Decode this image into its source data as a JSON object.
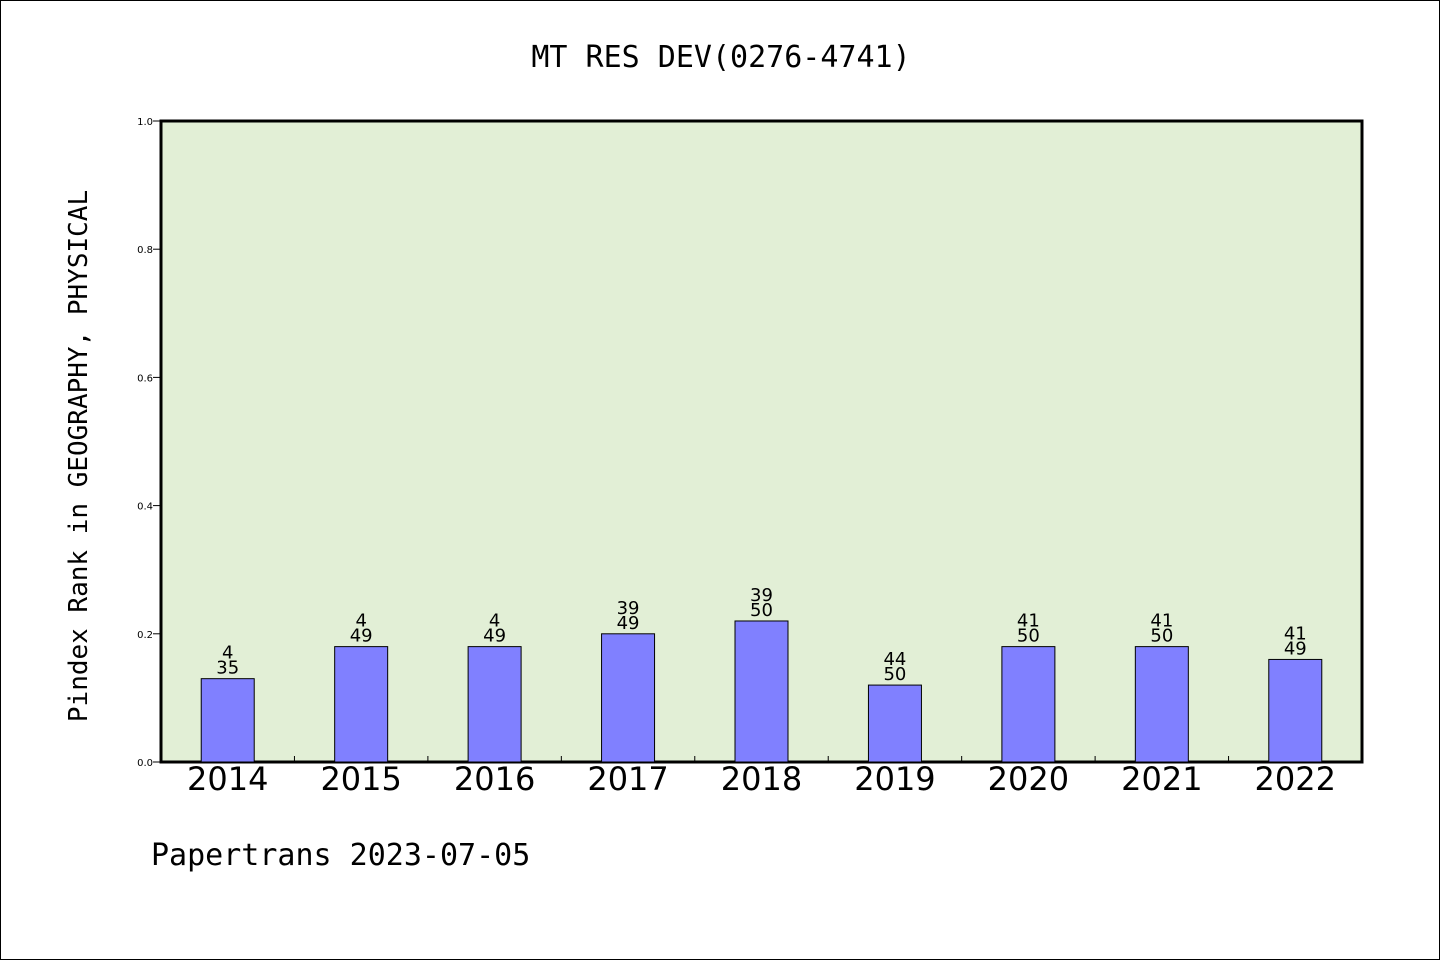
{
  "chart_data": {
    "type": "bar",
    "title": "MT RES DEV(0276-4741)",
    "ylabel": "Pindex Rank in GEOGRAPHY, PHYSICAL",
    "xlabel": "",
    "ylim": [
      0,
      1.0
    ],
    "yticks": [
      "0.0",
      "0.2",
      "0.4",
      "0.6",
      "0.8",
      "1.0"
    ],
    "categories": [
      "2014",
      "2015",
      "2016",
      "2017",
      "2018",
      "2019",
      "2020",
      "2021",
      "2022"
    ],
    "values": [
      0.13,
      0.18,
      0.18,
      0.2,
      0.22,
      0.12,
      0.18,
      0.18,
      0.16
    ],
    "bar_labels": [
      {
        "rank": "4",
        "total": "35"
      },
      {
        "rank": "4",
        "total": "49"
      },
      {
        "rank": "4",
        "total": "49"
      },
      {
        "rank": "39",
        "total": "49"
      },
      {
        "rank": "39",
        "total": "50"
      },
      {
        "rank": "44",
        "total": "50"
      },
      {
        "rank": "41",
        "total": "50"
      },
      {
        "rank": "41",
        "total": "50"
      },
      {
        "rank": "41",
        "total": "49"
      }
    ],
    "footer": "Papertrans 2023-07-05",
    "grid": false,
    "colors": {
      "plot_background": "#e2efd6",
      "bar_fill": "#8080ff",
      "bar_stroke": "#000000"
    }
  }
}
